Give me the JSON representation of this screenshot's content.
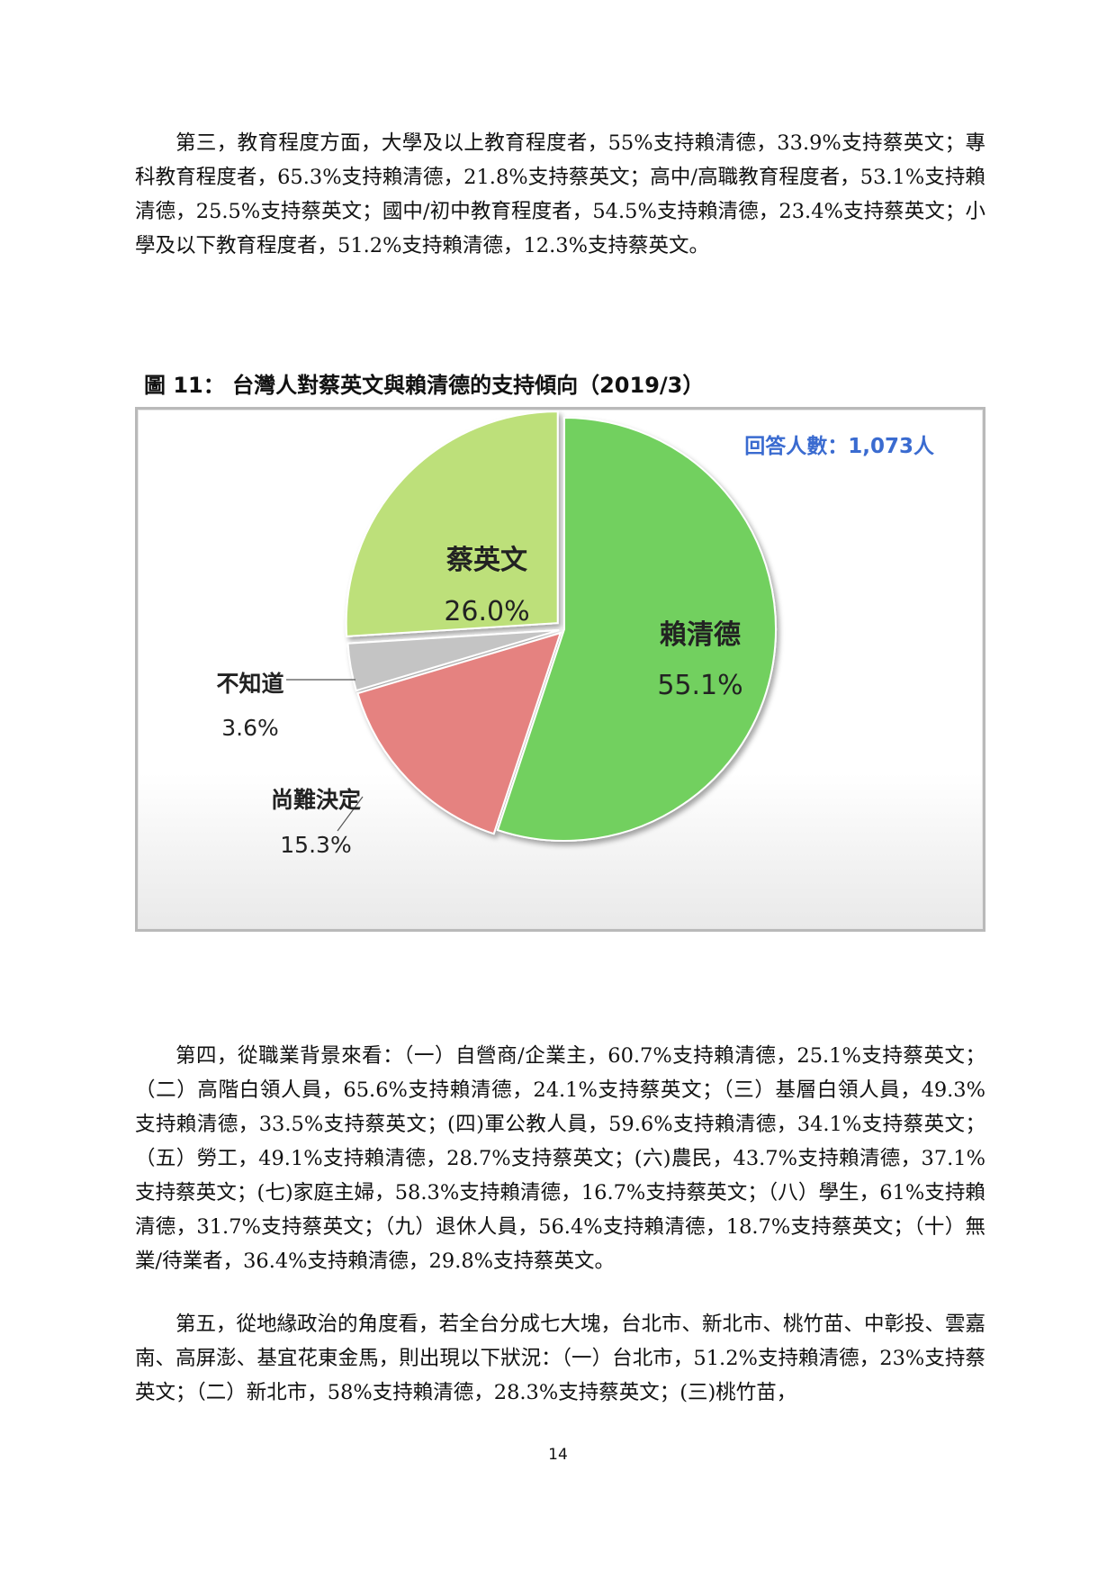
{
  "paragraphs": {
    "p1": "第三，教育程度方面，大學及以上教育程度者，55%支持賴清德，33.9%支持蔡英文；專科教育程度者，65.3%支持賴清德，21.8%支持蔡英文；高中/高職教育程度者，53.1%支持賴清德，25.5%支持蔡英文；國中/初中教育程度者，54.5%支持賴清德，23.4%支持蔡英文；小學及以下教育程度者，51.2%支持賴清德，12.3%支持蔡英文。",
    "p2": "第四，從職業背景來看：（一）自營商/企業主，60.7%支持賴清德，25.1%支持蔡英文；（二）高階白領人員，65.6%支持賴清德，24.1%支持蔡英文；（三）基層白領人員，49.3%支持賴清德，33.5%支持蔡英文；(四)軍公教人員，59.6%支持賴清德，34.1%支持蔡英文；（五）勞工，49.1%支持賴清德，28.7%支持蔡英文；(六)農民，43.7%支持賴清德，37.1%支持蔡英文；(七)家庭主婦，58.3%支持賴清德，16.7%支持蔡英文；（八）學生，61%支持賴清德，31.7%支持蔡英文；（九）退休人員，56.4%支持賴清德，18.7%支持蔡英文；（十）無業/待業者，36.4%支持賴清德，29.8%支持蔡英文。",
    "p3": "第五，從地緣政治的角度看，若全台分成七大塊，台北市、新北市、桃竹苗、中彰投、雲嘉南、高屏澎、基宜花東金馬，則出現以下狀況：（一）台北市，51.2%支持賴清德，23%支持蔡英文；（二）新北市，58%支持賴清德，28.3%支持蔡英文；(三)桃竹苗，"
  },
  "figure": {
    "caption": "圖 11：  台灣人對蔡英文與賴清德的支持傾向（2019/3）"
  },
  "chart_data": {
    "type": "pie",
    "title": "",
    "annotation": "回答人數：1,073人",
    "slices": [
      {
        "label": "賴清德",
        "value": 55.1,
        "display": "55.1%",
        "color": "#72d05e"
      },
      {
        "label": "尚難決定",
        "value": 15.3,
        "display": "15.3%",
        "color": "#e58280"
      },
      {
        "label": "不知道",
        "value": 3.6,
        "display": "3.6%",
        "color": "#c4c4c4"
      },
      {
        "label": "蔡英文",
        "value": 26.0,
        "display": "26.0%",
        "color": "#bde07a"
      }
    ],
    "colors": {
      "annotation": "#3a6bd0",
      "label_text": "#222222"
    }
  },
  "page_number": "14"
}
